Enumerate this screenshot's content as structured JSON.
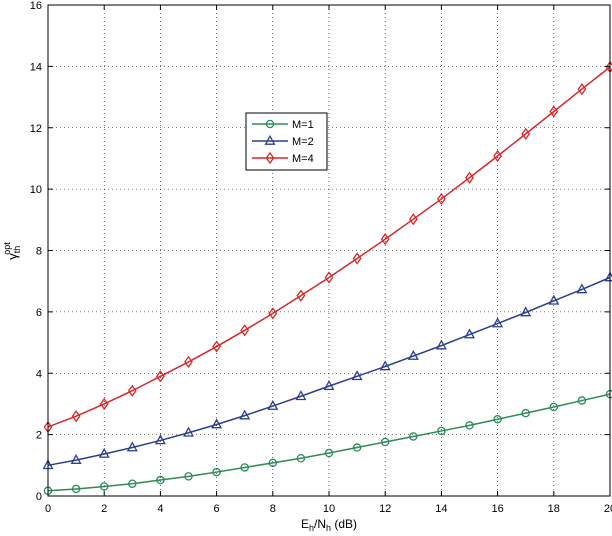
{
  "chart_data": {
    "type": "line",
    "title": "",
    "xlabel": "E_h/N_h (dB)",
    "xlabel_parts": {
      "main": "E",
      "sub1": "h",
      "mid": "/N",
      "sub2": "h",
      "tail": " (dB)"
    },
    "ylabel": "γ_th^opt",
    "ylabel_parts": {
      "main": "γ",
      "sub": "th",
      "sup": "opt"
    },
    "xlim": [
      0,
      20
    ],
    "ylim": [
      0,
      16
    ],
    "xticks": [
      0,
      2,
      4,
      6,
      8,
      10,
      12,
      14,
      16,
      18,
      20
    ],
    "yticks": [
      0,
      2,
      4,
      6,
      8,
      10,
      12,
      14,
      16
    ],
    "grid": true,
    "legend_position": "center-left",
    "x": [
      0,
      1,
      2,
      3,
      4,
      5,
      6,
      7,
      8,
      9,
      10,
      11,
      12,
      13,
      14,
      15,
      16,
      17,
      18,
      19,
      20
    ],
    "series": [
      {
        "name": "M=1",
        "color": "#2e8b57",
        "marker": "circle",
        "values": [
          0.17,
          0.23,
          0.31,
          0.4,
          0.52,
          0.64,
          0.78,
          0.93,
          1.08,
          1.23,
          1.4,
          1.58,
          1.76,
          1.94,
          2.12,
          2.3,
          2.5,
          2.7,
          2.9,
          3.11,
          3.32
        ]
      },
      {
        "name": "M=2",
        "color": "#2b3f8f",
        "marker": "triangle",
        "values": [
          1.0,
          1.17,
          1.37,
          1.58,
          1.81,
          2.06,
          2.33,
          2.62,
          2.93,
          3.25,
          3.58,
          3.9,
          4.22,
          4.56,
          4.9,
          5.26,
          5.62,
          5.98,
          6.36,
          6.73,
          7.12
        ]
      },
      {
        "name": "M=4",
        "color": "#d62728",
        "marker": "diamond",
        "values": [
          2.25,
          2.6,
          3.0,
          3.43,
          3.9,
          4.37,
          4.87,
          5.4,
          5.95,
          6.53,
          7.12,
          7.74,
          8.37,
          9.02,
          9.68,
          10.37,
          11.08,
          11.8,
          12.53,
          13.26,
          13.98
        ]
      }
    ]
  }
}
